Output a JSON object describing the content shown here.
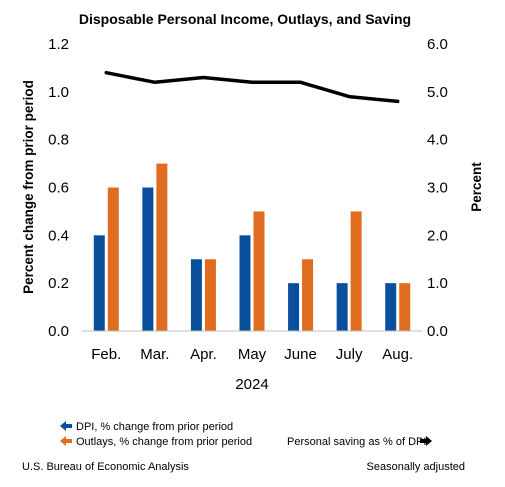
{
  "chart_data": {
    "type": "bar",
    "title": "Disposable Personal Income, Outlays, and Saving",
    "categories": [
      "Feb.",
      "Mar.",
      "Apr.",
      "May",
      "June",
      "July",
      "Aug."
    ],
    "x_group_label": "2024",
    "series": [
      {
        "name": "DPI, % change from prior period",
        "axis": "left",
        "type": "bar",
        "color": "#0a4f9c",
        "values": [
          0.4,
          0.6,
          0.3,
          0.4,
          0.2,
          0.2,
          0.2
        ]
      },
      {
        "name": "Outlays, % change from prior period",
        "axis": "left",
        "type": "bar",
        "color": "#e06c1f",
        "values": [
          0.6,
          0.7,
          0.3,
          0.5,
          0.3,
          0.5,
          0.2
        ]
      },
      {
        "name": "Personal saving as % of DPI",
        "axis": "right",
        "type": "line",
        "color": "#000000",
        "values": [
          5.4,
          5.2,
          5.3,
          5.2,
          5.2,
          4.9,
          4.8
        ]
      }
    ],
    "ylabel_left": "Percent change from prior period",
    "ylabel_right": "Percent",
    "yticks_left": [
      "0.0",
      "0.2",
      "0.4",
      "0.6",
      "0.8",
      "1.0",
      "1.2"
    ],
    "yticks_right": [
      "0.0",
      "1.0",
      "2.0",
      "3.0",
      "4.0",
      "5.0",
      "6.0"
    ],
    "ylim_left": [
      0,
      1.2
    ],
    "ylim_right": [
      0,
      6.0
    ],
    "grid": false
  },
  "footer": {
    "source": "U.S. Bureau of Economic Analysis",
    "note": "Seasonally adjusted"
  }
}
